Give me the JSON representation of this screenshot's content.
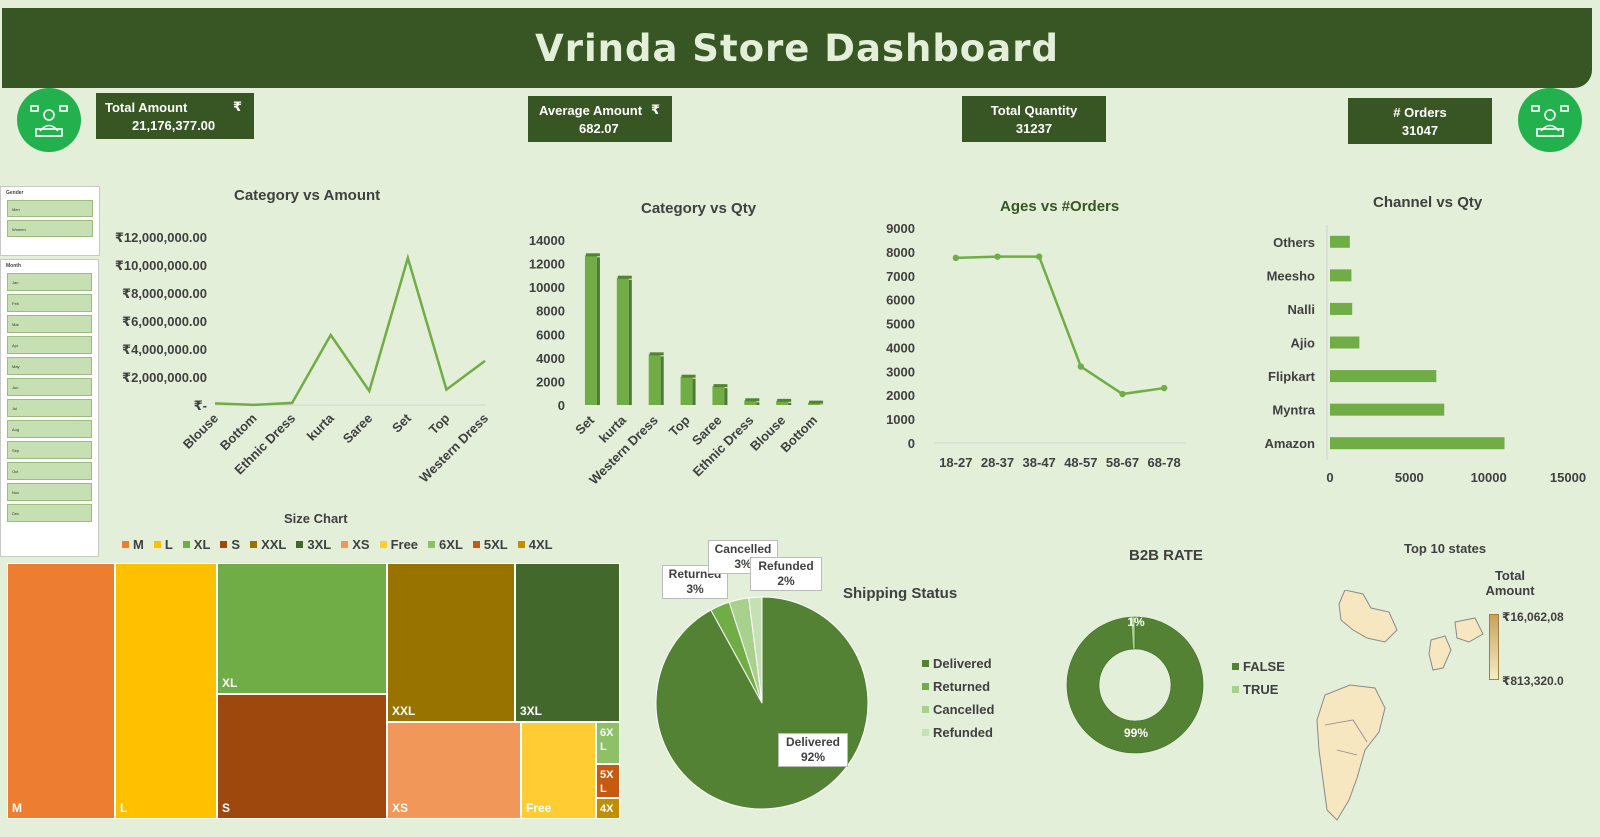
{
  "header": {
    "title": "Vrinda Store Dashboard"
  },
  "kpis": {
    "total_amount": {
      "label": "Total Amount",
      "currency": "₹",
      "value": "21,176,377.00"
    },
    "average_amount": {
      "label": "Average Amount",
      "currency": "₹",
      "value": "682.07"
    },
    "total_quantity": {
      "label": "Total Quantity",
      "value": "31237"
    },
    "orders": {
      "label": "# Orders",
      "value": "31047"
    }
  },
  "slicers": {
    "gender": {
      "title": "Gender",
      "items": [
        "Men",
        "Women"
      ]
    },
    "month": {
      "title": "Month",
      "items": [
        "Jan",
        "Feb",
        "Mar",
        "Apr",
        "May",
        "Jun",
        "Jul",
        "Aug",
        "Sep",
        "Oct",
        "Nov",
        "Dec"
      ]
    }
  },
  "colors": {
    "header": "#375623",
    "bg": "#e3efd9",
    "green": "#70ad47",
    "dark_green": "#548235",
    "avatar": "#22b14c"
  },
  "chart_data": [
    {
      "id": "category_amount",
      "type": "line",
      "title": "Category vs Amount",
      "categories": [
        "Blouse",
        "Bottom",
        "Ethnic Dress",
        "kurta",
        "Saree",
        "Set",
        "Top",
        "Western Dress"
      ],
      "values": [
        120000,
        10000,
        150000,
        5000000,
        1000000,
        10500000,
        1100000,
        3150000
      ],
      "yticks": [
        "₹-",
        "₹2,000,000.00",
        "₹4,000,000.00",
        "₹6,000,000.00",
        "₹8,000,000.00",
        "₹10,000,000.00",
        "₹12,000,000.00"
      ],
      "ylim": [
        0,
        12000000
      ]
    },
    {
      "id": "category_qty",
      "type": "bar",
      "title": "Category vs Qty",
      "categories": [
        "Set",
        "kurta",
        "Western Dress",
        "Top",
        "Saree",
        "Ethnic Dress",
        "Blouse",
        "Bottom"
      ],
      "values": [
        12700,
        10800,
        4300,
        2400,
        1600,
        400,
        350,
        200
      ],
      "yticks": [
        "0",
        "2000",
        "4000",
        "6000",
        "8000",
        "10000",
        "12000",
        "14000"
      ],
      "ylim": [
        0,
        14000
      ]
    },
    {
      "id": "ages_orders",
      "type": "line",
      "title": "Ages vs #Orders",
      "categories": [
        "18-27",
        "28-37",
        "38-47",
        "48-57",
        "58-67",
        "68-78"
      ],
      "values": [
        7750,
        7800,
        7800,
        3200,
        2050,
        2300
      ],
      "yticks": [
        "0",
        "1000",
        "2000",
        "3000",
        "4000",
        "5000",
        "6000",
        "7000",
        "8000",
        "9000"
      ],
      "ylim": [
        0,
        9000
      ]
    },
    {
      "id": "channel_qty",
      "type": "bar",
      "orientation": "horizontal",
      "title": "Channel vs Qty",
      "categories": [
        "Others",
        "Meesho",
        "Nalli",
        "Ajio",
        "Flipkart",
        "Myntra",
        "Amazon"
      ],
      "values": [
        1250,
        1350,
        1400,
        1850,
        6700,
        7200,
        11000
      ],
      "xticks": [
        "0",
        "5000",
        "10000",
        "15000"
      ],
      "xlim": [
        0,
        15000
      ]
    },
    {
      "id": "size_chart",
      "type": "treemap",
      "title": "Size Chart",
      "legend": [
        "M",
        "L",
        "XL",
        "S",
        "XXL",
        "3XL",
        "XS",
        "Free",
        "6XL",
        "5XL",
        "4XL"
      ],
      "labels": [
        "M",
        "L",
        "XL",
        "S",
        "XXL",
        "3XL",
        "XS",
        "Free",
        "6X L",
        "5X L",
        "4X"
      ],
      "legend_colors": [
        "#ed7d31",
        "#ffc000",
        "#70ad47",
        "#9e480e",
        "#997300",
        "#43682b",
        "#f1975a",
        "#ffcd33",
        "#8cc168",
        "#c55a11",
        "#bf8f00"
      ]
    },
    {
      "id": "shipping_status",
      "type": "pie",
      "title": "Shipping Status",
      "labels": [
        "Delivered",
        "Returned",
        "Cancelled",
        "Refunded"
      ],
      "values": [
        92,
        3,
        3,
        2
      ],
      "value_labels": [
        "92%",
        "3%",
        "3%",
        "2%"
      ],
      "colors": [
        "#548235",
        "#70ad47",
        "#a9d18e",
        "#c5e0b4"
      ]
    },
    {
      "id": "b2b_rate",
      "type": "pie",
      "title": "B2B RATE",
      "labels": [
        "FALSE",
        "TRUE"
      ],
      "values": [
        99,
        1
      ],
      "value_labels": [
        "99%",
        "1%"
      ],
      "colors": [
        "#548235",
        "#a9d18e"
      ]
    },
    {
      "id": "top_states",
      "type": "map",
      "title": "Top 10 states",
      "legend_title": "Total Amount",
      "legend_max": "₹16,062,08",
      "legend_min": "₹813,320.0"
    }
  ]
}
